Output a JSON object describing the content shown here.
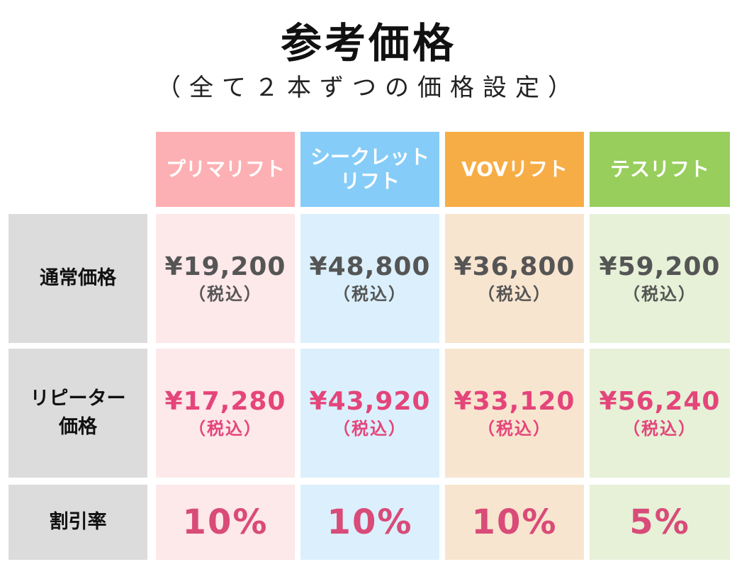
{
  "title": "参考価格",
  "subtitle": "（全て２本ずつの価格設定）",
  "columns": [
    {
      "line1": "プリマリフト",
      "line2": "",
      "head_color": "#fdb0b3",
      "cell_color": "#fde8ea"
    },
    {
      "line1": "シークレット",
      "line2": "リフト",
      "head_color": "#86ccf8",
      "cell_color": "#dbf0fc"
    },
    {
      "line1": "VOVリフト",
      "line2": "",
      "head_color": "#f7ad45",
      "cell_color": "#f8e5cf"
    },
    {
      "line1": "テスリフト",
      "line2": "",
      "head_color": "#97ce5c",
      "cell_color": "#e6f1d8"
    }
  ],
  "rows": {
    "regular": {
      "label_line1": "通常価格",
      "label_line2": "",
      "prices": [
        "¥19,200",
        "¥48,800",
        "¥36,800",
        "¥59,200"
      ],
      "tax": [
        "（税込）",
        "（税込）",
        "（税込）",
        "（税込）"
      ]
    },
    "repeater": {
      "label_line1": "リピーター",
      "label_line2": "価格",
      "prices": [
        "¥17,280",
        "¥43,920",
        "¥33,120",
        "¥56,240"
      ],
      "tax": [
        "（税込）",
        "（税込）",
        "（税込）",
        "（税込）"
      ]
    },
    "discount": {
      "label_line1": "割引率",
      "label_line2": "",
      "rates": [
        "10%",
        "10%",
        "10%",
        "5%"
      ]
    }
  }
}
